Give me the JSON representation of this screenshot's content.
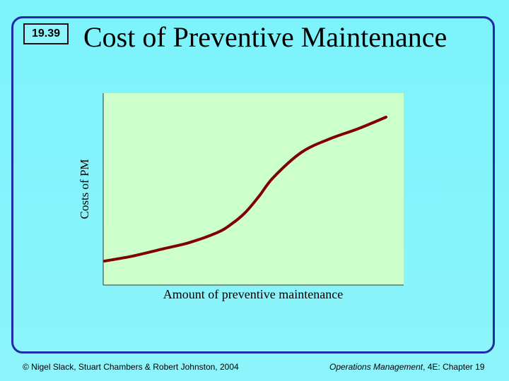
{
  "slide": {
    "number": "19.39",
    "title": "Cost of Preventive Maintenance"
  },
  "footer": {
    "left": "© Nigel Slack, Stuart Chambers & Robert Johnston, 2004",
    "right_book": "Operations Management",
    "right_rest": ", 4E: Chapter 19"
  },
  "colors": {
    "background": "#7ff3fb",
    "frame": "#1e2aa8",
    "plot_area": "#ccffcc",
    "curve": "#800000"
  },
  "chart_data": {
    "type": "line",
    "title": "",
    "xlabel": "Amount of preventive maintenance",
    "ylabel": "Costs of PM",
    "xlim": [
      0,
      100
    ],
    "ylim": [
      0,
      100
    ],
    "grid": false,
    "series": [
      {
        "values_note": "",
        "x": [
          0,
          10,
          20,
          30,
          40,
          45,
          50,
          55,
          60,
          70,
          80,
          90,
          100
        ],
        "y": [
          13,
          16,
          20,
          24,
          30,
          35,
          42,
          52,
          63,
          78,
          86,
          92,
          99
        ]
      }
    ]
  }
}
